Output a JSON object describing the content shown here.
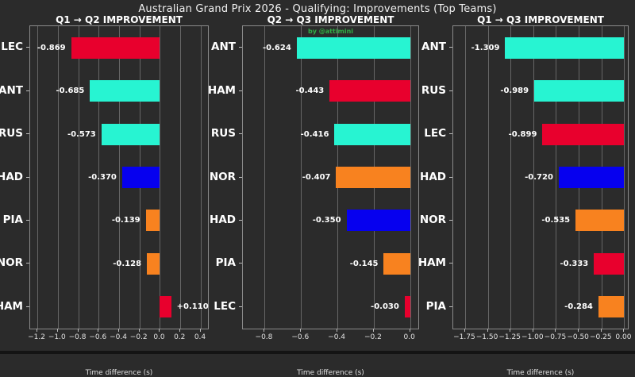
{
  "figure": {
    "title": "Australian Grand Prix 2026 - Qualifying: Improvements (Top Teams)",
    "credit": "by @attimini"
  },
  "colors": {
    "background": "#2b2b2b",
    "red": "#e8002d",
    "teal": "#27f4d2",
    "blue": "#0600ef",
    "orange": "#f8821f",
    "credit_green": "#2fae45",
    "grid": "rgba(255,255,255,0.28)",
    "spine": "#8a8a8a",
    "text": "#ffffff"
  },
  "chart_data": {
    "type": "bar",
    "orientation": "horizontal",
    "title": "Australian Grand Prix 2026 - Qualifying: Improvements (Top Teams)",
    "grid": true,
    "panels": [
      {
        "title": "Q1 → Q2 IMPROVEMENT",
        "xlabel": "Time difference (s)",
        "xlim": [
          -1.27,
          0.47
        ],
        "tick_values": [
          -1.2,
          -1.0,
          -0.8,
          -0.6,
          -0.4,
          -0.2,
          0.0,
          0.2,
          0.4
        ],
        "tick_labels": [
          "−1.2",
          "−1.0",
          "−0.8",
          "−0.6",
          "−0.4",
          "−0.2",
          "0.0",
          "0.2",
          "0.4"
        ],
        "bars": [
          {
            "driver": "LEC",
            "value": -0.869,
            "label": "-0.869",
            "color": "red"
          },
          {
            "driver": "ANT",
            "value": -0.685,
            "label": "-0.685",
            "color": "teal"
          },
          {
            "driver": "RUS",
            "value": -0.573,
            "label": "-0.573",
            "color": "teal"
          },
          {
            "driver": "HAD",
            "value": -0.37,
            "label": "-0.370",
            "color": "blue"
          },
          {
            "driver": "PIA",
            "value": -0.139,
            "label": "-0.139",
            "color": "orange"
          },
          {
            "driver": "NOR",
            "value": -0.128,
            "label": "-0.128",
            "color": "orange"
          },
          {
            "driver": "HAM",
            "value": 0.11,
            "label": "+0.110",
            "color": "red"
          }
        ]
      },
      {
        "title": "Q2 → Q3 IMPROVEMENT",
        "xlabel": "Time difference (s)",
        "xlim": [
          -0.92,
          0.045
        ],
        "tick_values": [
          -0.8,
          -0.6,
          -0.4,
          -0.2,
          0.0
        ],
        "tick_labels": [
          "−0.8",
          "−0.6",
          "−0.4",
          "−0.2",
          "0.0"
        ],
        "bars": [
          {
            "driver": "ANT",
            "value": -0.624,
            "label": "-0.624",
            "color": "teal"
          },
          {
            "driver": "HAM",
            "value": -0.443,
            "label": "-0.443",
            "color": "red"
          },
          {
            "driver": "RUS",
            "value": -0.416,
            "label": "-0.416",
            "color": "teal"
          },
          {
            "driver": "NOR",
            "value": -0.407,
            "label": "-0.407",
            "color": "orange"
          },
          {
            "driver": "HAD",
            "value": -0.35,
            "label": "-0.350",
            "color": "blue"
          },
          {
            "driver": "PIA",
            "value": -0.145,
            "label": "-0.145",
            "color": "orange"
          },
          {
            "driver": "LEC",
            "value": -0.03,
            "label": "-0.030",
            "color": "red"
          }
        ]
      },
      {
        "title": "Q1 → Q3 IMPROVEMENT",
        "xlabel": "Time difference (s)",
        "xlim": [
          -1.88,
          0.04
        ],
        "tick_values": [
          -1.75,
          -1.5,
          -1.25,
          -1.0,
          -0.75,
          -0.5,
          -0.25,
          0.0
        ],
        "tick_labels": [
          "−1.75",
          "−1.50",
          "−1.25",
          "−1.00",
          "−0.75",
          "−0.50",
          "−0.25",
          "0.00"
        ],
        "bars": [
          {
            "driver": "ANT",
            "value": -1.309,
            "label": "-1.309",
            "color": "teal"
          },
          {
            "driver": "RUS",
            "value": -0.989,
            "label": "-0.989",
            "color": "teal"
          },
          {
            "driver": "LEC",
            "value": -0.899,
            "label": "-0.899",
            "color": "red"
          },
          {
            "driver": "HAD",
            "value": -0.72,
            "label": "-0.720",
            "color": "blue"
          },
          {
            "driver": "NOR",
            "value": -0.535,
            "label": "-0.535",
            "color": "orange"
          },
          {
            "driver": "HAM",
            "value": -0.333,
            "label": "-0.333",
            "color": "red"
          },
          {
            "driver": "PIA",
            "value": -0.284,
            "label": "-0.284",
            "color": "orange"
          }
        ]
      }
    ]
  }
}
